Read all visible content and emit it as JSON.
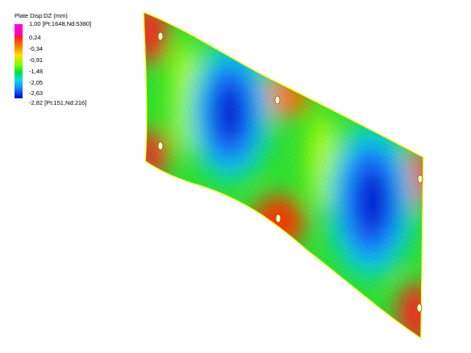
{
  "legend": {
    "title": "Plate Disp:DZ (mm)",
    "labels": [
      "1,00 [Pt:1648,Nd:5380]",
      "0,24",
      "-0,34",
      "-0,91",
      "-1,48",
      "-2,05",
      "-2,63",
      "-2,82 [Pt:151,Nd:216]"
    ]
  }
}
